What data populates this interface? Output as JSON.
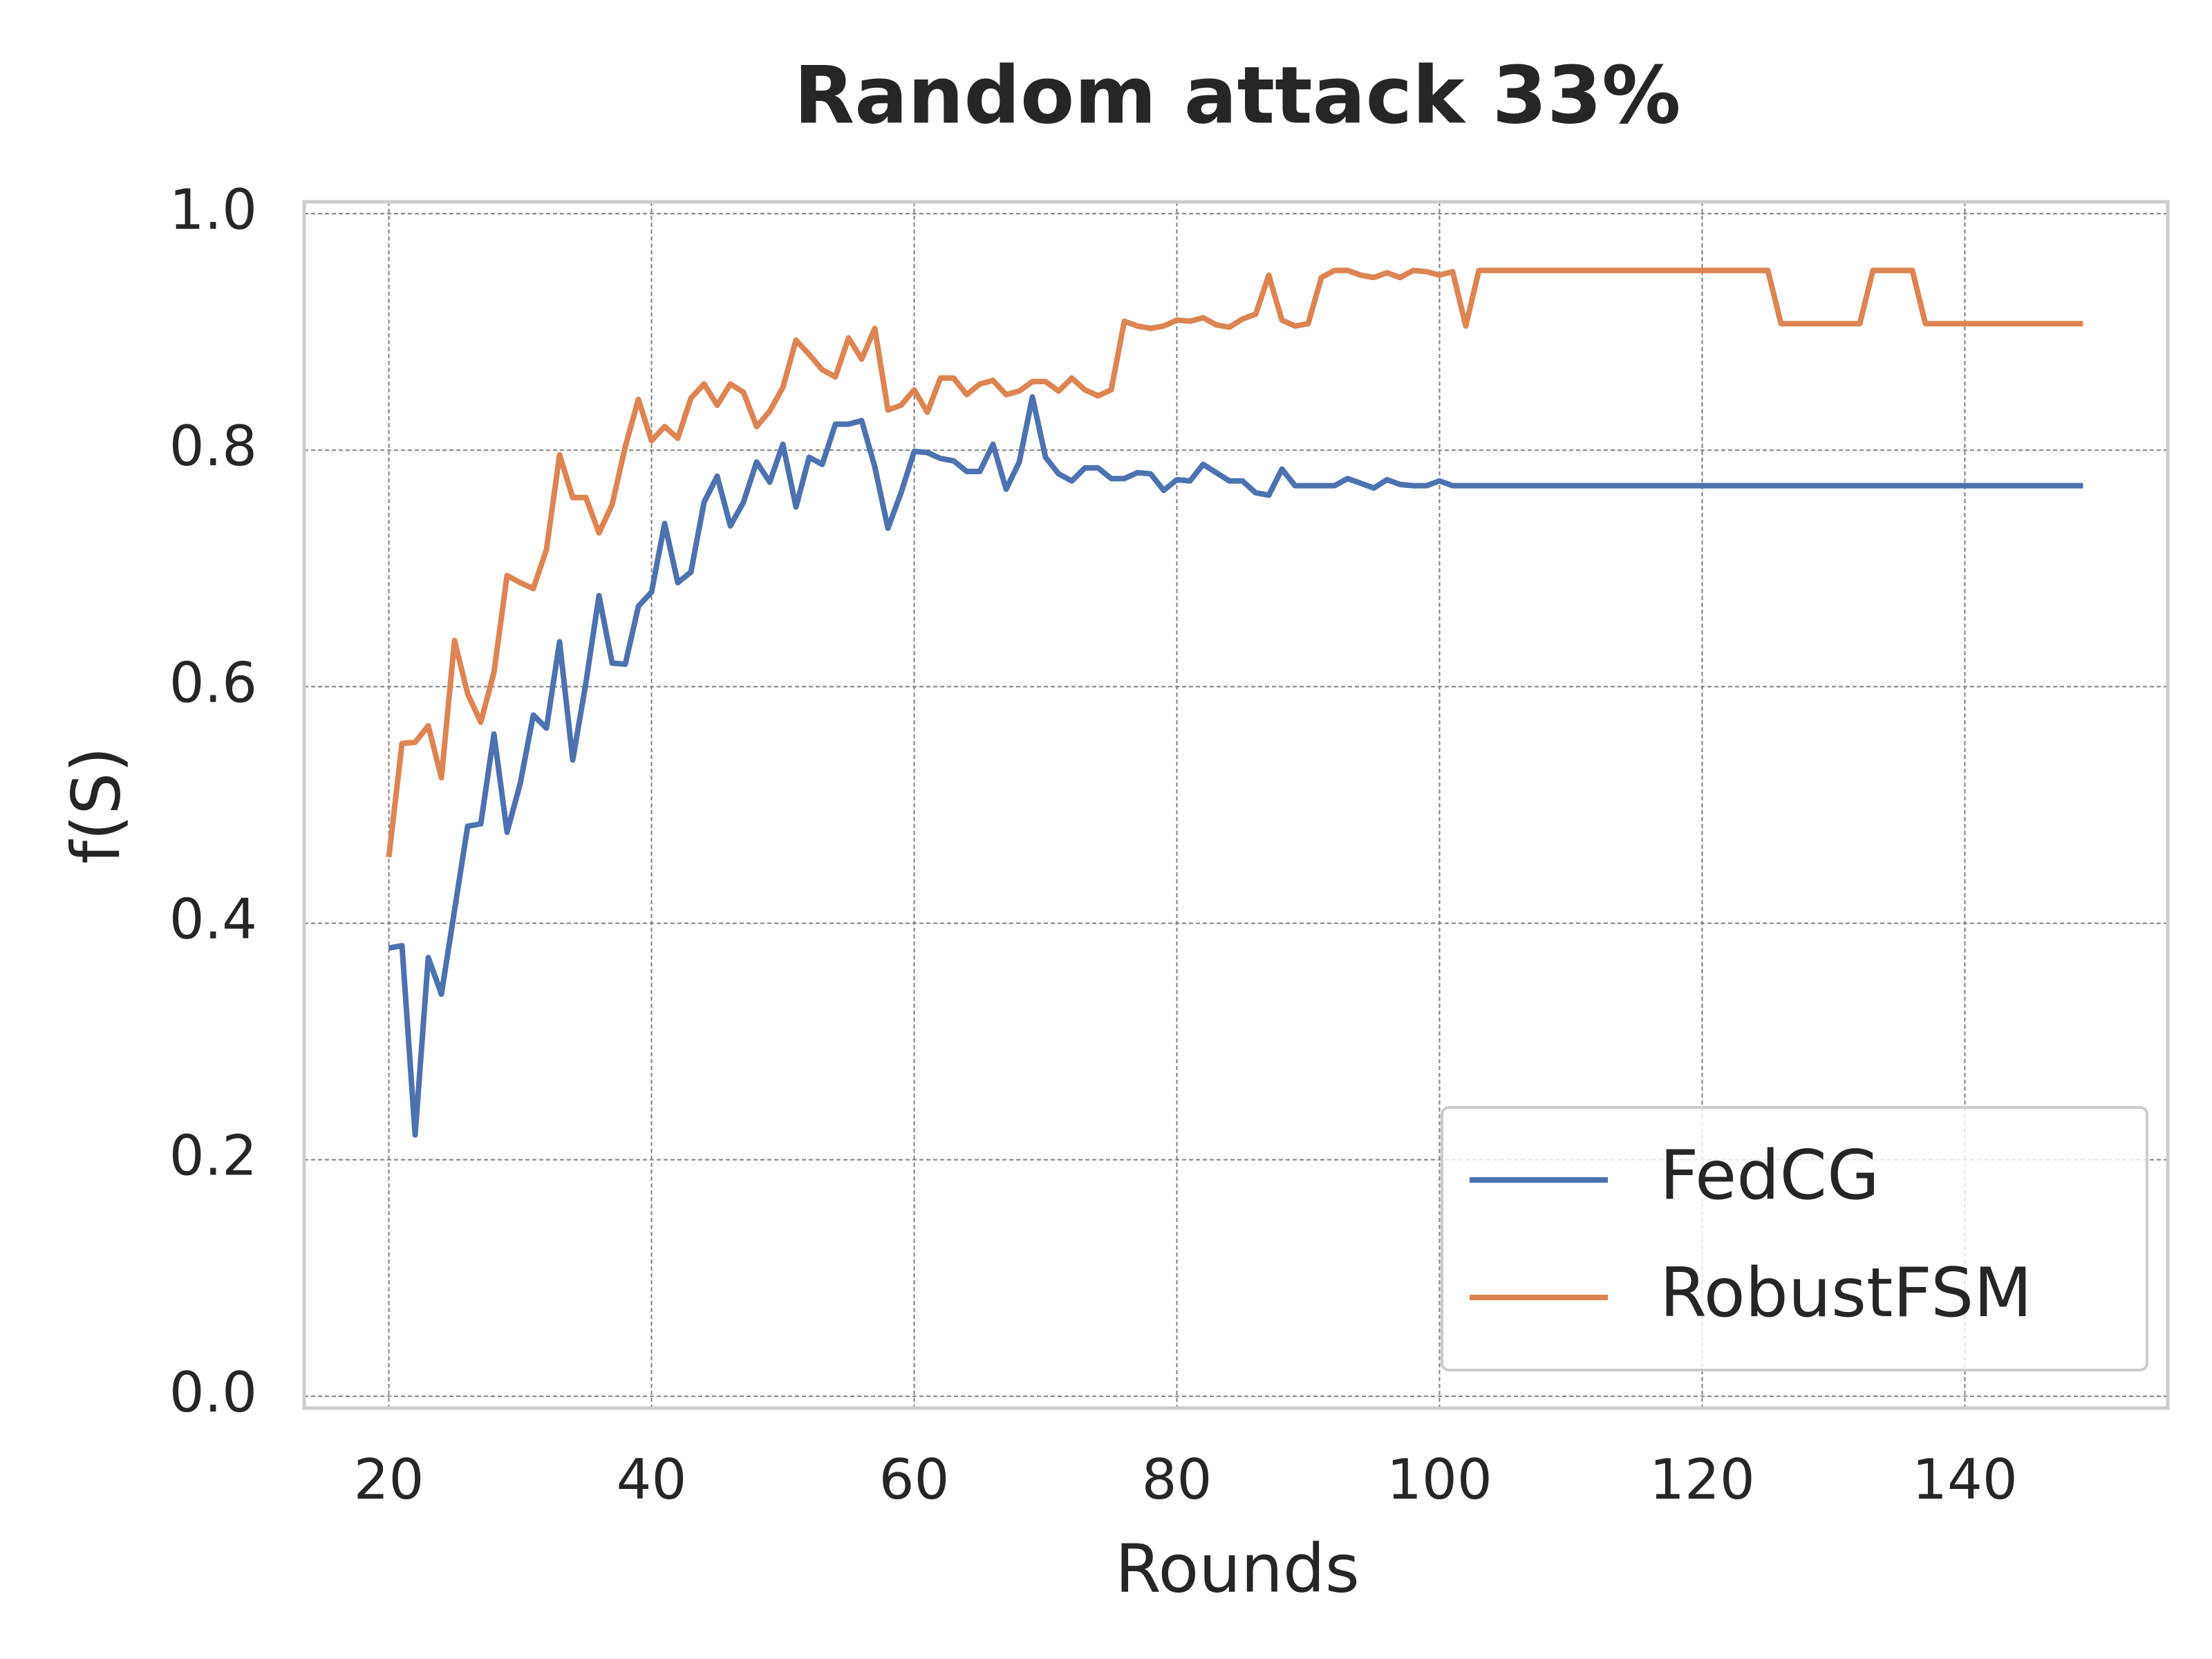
{
  "chart_data": {
    "type": "line",
    "title": "Random attack 33%",
    "xlabel": "Rounds",
    "ylabel": "f(S)",
    "x": [
      20,
      21,
      22,
      23,
      24,
      25,
      26,
      27,
      28,
      29,
      30,
      31,
      32,
      33,
      34,
      35,
      36,
      37,
      38,
      39,
      40,
      41,
      42,
      43,
      44,
      45,
      46,
      47,
      48,
      49,
      50,
      51,
      52,
      53,
      54,
      55,
      56,
      57,
      58,
      59,
      60,
      61,
      62,
      63,
      64,
      65,
      66,
      67,
      68,
      69,
      70,
      71,
      72,
      73,
      74,
      75,
      76,
      77,
      78,
      79,
      80,
      81,
      82,
      83,
      84,
      85,
      86,
      87,
      88,
      89,
      90,
      91,
      92,
      93,
      94,
      95,
      96,
      97,
      98,
      99,
      100,
      101,
      102,
      103,
      104,
      105,
      106,
      107,
      108,
      109,
      110,
      111,
      112,
      113,
      114,
      115,
      116,
      117,
      118,
      119,
      120,
      121,
      122,
      123,
      124,
      125,
      126,
      127,
      128,
      129,
      130,
      131,
      132,
      133,
      134,
      135,
      136,
      137,
      138,
      139,
      140,
      141,
      142,
      143,
      144,
      145,
      146,
      147,
      148,
      149
    ],
    "series": [
      {
        "name": "FedCG",
        "color": "#4c72b0",
        "values": [
          0.379,
          0.381,
          0.221,
          0.371,
          0.34,
          0.411,
          0.482,
          0.484,
          0.56,
          0.477,
          0.518,
          0.576,
          0.565,
          0.638,
          0.538,
          0.603,
          0.677,
          0.62,
          0.619,
          0.668,
          0.68,
          0.738,
          0.688,
          0.697,
          0.756,
          0.778,
          0.736,
          0.756,
          0.79,
          0.773,
          0.805,
          0.752,
          0.794,
          0.788,
          0.822,
          0.822,
          0.825,
          0.786,
          0.734,
          0.764,
          0.799,
          0.798,
          0.793,
          0.791,
          0.782,
          0.782,
          0.805,
          0.767,
          0.79,
          0.845,
          0.794,
          0.78,
          0.774,
          0.785,
          0.785,
          0.776,
          0.776,
          0.781,
          0.78,
          0.766,
          0.775,
          0.774,
          0.788,
          0.781,
          0.774,
          0.774,
          0.764,
          0.762,
          0.784,
          0.77,
          0.77,
          0.77,
          0.77,
          0.776,
          0.772,
          0.768,
          0.775,
          0.771,
          0.77,
          0.77,
          0.774,
          0.77,
          0.77,
          0.77,
          0.77,
          0.77,
          0.77,
          0.77,
          0.77,
          0.77,
          0.77,
          0.77,
          0.77,
          0.77,
          0.77,
          0.77,
          0.77,
          0.77,
          0.77,
          0.77,
          0.77,
          0.77,
          0.77,
          0.77,
          0.77,
          0.77,
          0.77,
          0.77,
          0.77,
          0.77,
          0.77,
          0.77,
          0.77,
          0.77,
          0.77,
          0.77,
          0.77,
          0.77,
          0.77,
          0.77,
          0.77,
          0.77,
          0.77,
          0.77,
          0.77,
          0.77,
          0.77,
          0.77,
          0.77,
          0.77
        ]
      },
      {
        "name": "RobustFSM",
        "color": "#dd8452",
        "values": [
          0.456,
          0.552,
          0.553,
          0.567,
          0.523,
          0.639,
          0.594,
          0.57,
          0.612,
          0.694,
          0.688,
          0.683,
          0.716,
          0.796,
          0.76,
          0.76,
          0.73,
          0.754,
          0.803,
          0.843,
          0.808,
          0.82,
          0.81,
          0.844,
          0.856,
          0.838,
          0.856,
          0.849,
          0.82,
          0.833,
          0.853,
          0.893,
          0.881,
          0.868,
          0.862,
          0.895,
          0.877,
          0.903,
          0.834,
          0.838,
          0.851,
          0.832,
          0.861,
          0.861,
          0.847,
          0.856,
          0.859,
          0.847,
          0.85,
          0.858,
          0.858,
          0.85,
          0.861,
          0.851,
          0.846,
          0.851,
          0.909,
          0.905,
          0.903,
          0.905,
          0.91,
          0.909,
          0.912,
          0.906,
          0.904,
          0.911,
          0.915,
          0.948,
          0.91,
          0.905,
          0.907,
          0.946,
          0.952,
          0.952,
          0.948,
          0.946,
          0.95,
          0.946,
          0.952,
          0.951,
          0.948,
          0.951,
          0.905,
          0.952,
          0.952,
          0.952,
          0.952,
          0.952,
          0.952,
          0.952,
          0.952,
          0.952,
          0.952,
          0.952,
          0.952,
          0.952,
          0.952,
          0.952,
          0.952,
          0.952,
          0.952,
          0.952,
          0.952,
          0.952,
          0.952,
          0.952,
          0.907,
          0.907,
          0.907,
          0.907,
          0.907,
          0.907,
          0.907,
          0.952,
          0.952,
          0.952,
          0.952,
          0.907,
          0.907,
          0.907,
          0.907,
          0.907,
          0.907,
          0.907,
          0.907,
          0.907,
          0.907,
          0.907,
          0.907,
          0.907
        ]
      }
    ],
    "xlim": [
      13.55,
      155.45
    ],
    "ylim": [
      -0.01,
      1.01
    ],
    "xticks": [
      20,
      40,
      60,
      80,
      100,
      120,
      140
    ],
    "yticks": [
      {
        "value": 0,
        "label": "0.0"
      },
      0.2,
      0.4,
      0.6,
      0.8,
      {
        "value": 1,
        "label": "1.0"
      }
    ],
    "grid": true,
    "legend": "lower right"
  }
}
